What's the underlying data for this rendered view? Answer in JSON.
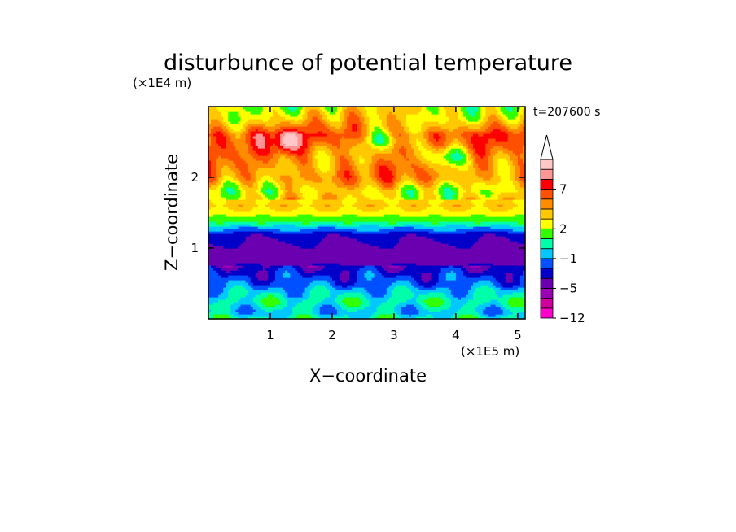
{
  "chart_data": {
    "type": "heatmap",
    "title": "disturbunce of potential temperature",
    "time_label": "t=207600 s",
    "xlabel": "X−coordinate",
    "ylabel": "Z−coordinate",
    "x_multiplier": "(×1E5 m)",
    "y_multiplier": "(×1E4 m)",
    "xlim": [
      0,
      5.12
    ],
    "ylim": [
      0,
      3.0
    ],
    "x_ticks": [
      "1",
      "2",
      "3",
      "4",
      "5"
    ],
    "y_ticks": [
      "1",
      "2"
    ],
    "grid": false,
    "colorbar": {
      "placement": "right",
      "tick_labels": [
        "7",
        "2",
        "−1",
        "−5",
        "−12"
      ],
      "extend": "max",
      "colors": [
        "#ff00cc",
        "#d0009c",
        "#9a00b4",
        "#6a00b0",
        "#0000c8",
        "#0050ff",
        "#00c8ff",
        "#00ffa8",
        "#32ff00",
        "#ffff00",
        "#ffc800",
        "#ff8c00",
        "#ff5000",
        "#ff0000",
        "#ff9696",
        "#ffc8c8"
      ]
    },
    "z_profile": {
      "z": [
        0.0,
        0.1,
        0.25,
        0.4,
        0.5,
        0.7,
        0.8,
        1.0,
        1.2,
        1.3,
        1.4,
        1.5,
        1.6,
        1.8,
        2.0,
        2.3,
        2.6,
        2.8,
        3.0
      ],
      "level_index": [
        7,
        6,
        7,
        6,
        5,
        4,
        3,
        3,
        4,
        6,
        8,
        9,
        10,
        9,
        11,
        11,
        12,
        10,
        9
      ]
    }
  }
}
